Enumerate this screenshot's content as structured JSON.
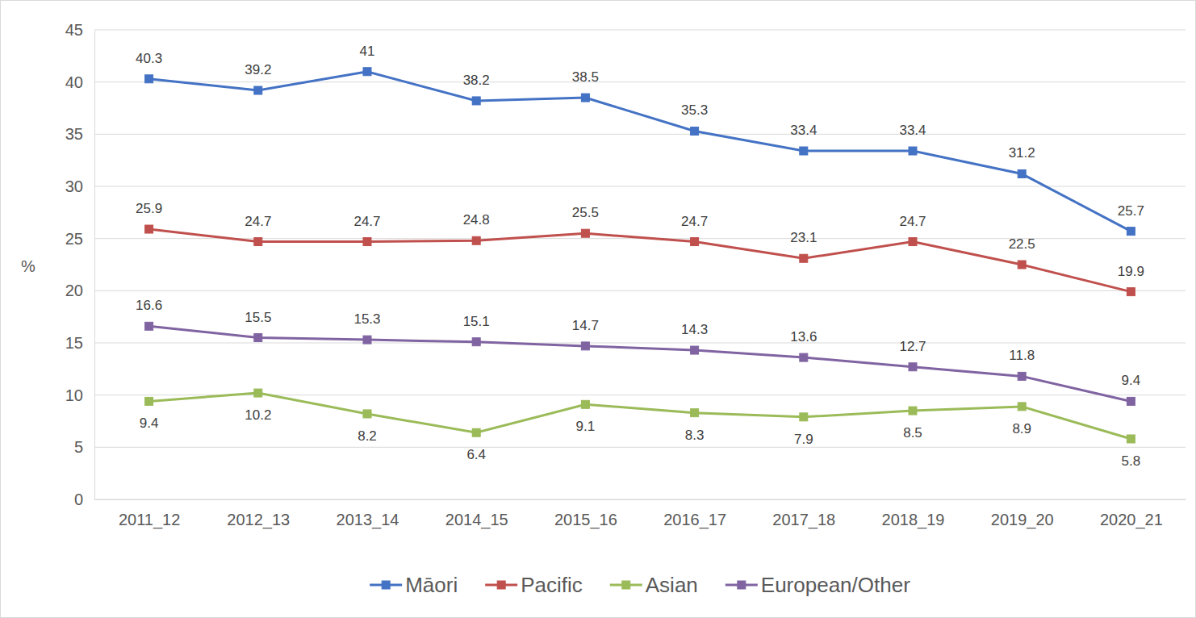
{
  "chart_data": {
    "type": "line",
    "ylabel": "%",
    "categories": [
      "2011_12",
      "2012_13",
      "2013_14",
      "2014_15",
      "2015_16",
      "2016_17",
      "2017_18",
      "2018_19",
      "2019_20",
      "2020_21"
    ],
    "series": [
      {
        "name": "Māori",
        "color": "#4472c4",
        "marker": "square",
        "values": [
          40.3,
          39.2,
          41,
          38.2,
          38.5,
          35.3,
          33.4,
          33.4,
          31.2,
          25.7
        ]
      },
      {
        "name": "Pacific",
        "color": "#c0504d",
        "marker": "square",
        "values": [
          25.9,
          24.7,
          24.7,
          24.8,
          25.5,
          24.7,
          23.1,
          24.7,
          22.5,
          19.9
        ]
      },
      {
        "name": "Asian",
        "color": "#9bbb59",
        "marker": "square",
        "values": [
          9.4,
          10.2,
          8.2,
          6.4,
          9.1,
          8.3,
          7.9,
          8.5,
          8.9,
          5.8
        ]
      },
      {
        "name": "European/Other",
        "color": "#8064a2",
        "marker": "square",
        "values": [
          16.6,
          15.5,
          15.3,
          15.1,
          14.7,
          14.3,
          13.6,
          12.7,
          11.8,
          9.4
        ]
      }
    ],
    "ylim": [
      0,
      45
    ],
    "yticks": [
      0,
      5,
      10,
      15,
      20,
      25,
      30,
      35,
      40,
      45
    ],
    "grid": true,
    "data_labels": true,
    "legend": "bottom"
  }
}
